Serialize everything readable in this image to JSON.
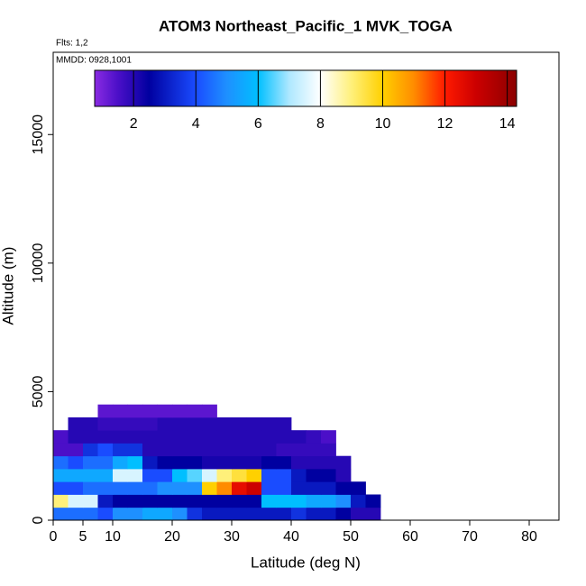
{
  "chart_data": {
    "type": "heatmap",
    "title": "ATOM3 Northeast_Pacific_1 MVK_TOGA",
    "annotations": [
      "Flts: 1,2",
      "MMDD: 0928,1001"
    ],
    "x_label": "Latitude (deg N)",
    "y_label": "Altitude (m)",
    "xlim": [
      0,
      85
    ],
    "xticks": [
      0,
      5,
      10,
      20,
      30,
      40,
      50,
      60,
      70,
      80
    ],
    "ylim": [
      0,
      18200
    ],
    "yticks": [
      0,
      5000,
      10000,
      15000
    ],
    "lat_bins": [
      0,
      2.5,
      5,
      7.5,
      10,
      12.5,
      15,
      17.5,
      20,
      22.5,
      25,
      27.5,
      30,
      32.5,
      35,
      37.5,
      40,
      42.5,
      45,
      47.5,
      50,
      52.5,
      55
    ],
    "alt_bins": [
      0,
      500,
      1000,
      1500,
      2000,
      2500,
      3000,
      3500,
      4000,
      4500
    ],
    "values": [
      [
        4.5,
        4.5,
        4.5,
        4,
        5,
        5,
        5.5,
        5.5,
        5,
        3.5,
        3,
        3,
        3,
        3,
        3,
        3,
        3.5,
        3,
        3,
        2.5,
        2,
        2
      ],
      [
        9,
        7.5,
        7.5,
        3,
        2.5,
        2.5,
        2.5,
        2.5,
        2.5,
        2.5,
        2.5,
        2.5,
        2.5,
        2.5,
        6,
        6,
        6,
        5.5,
        5.5,
        5,
        3,
        2.5
      ],
      [
        4,
        4,
        4.5,
        4.5,
        4.5,
        4.5,
        4.5,
        5,
        5,
        5,
        10,
        11,
        12.5,
        13,
        4,
        4,
        3,
        3,
        3,
        2.5,
        2.5,
        null
      ],
      [
        5.5,
        5.5,
        5.5,
        5.5,
        7.5,
        7.5,
        4,
        4,
        6,
        6.5,
        7.5,
        9,
        9.5,
        10,
        4,
        4,
        3,
        2.5,
        2.5,
        2,
        null,
        null
      ],
      [
        4.5,
        4,
        4.5,
        4.5,
        5.5,
        6,
        3,
        2.5,
        2.5,
        2.5,
        2.2,
        2.2,
        2.2,
        2.2,
        2.5,
        2.5,
        2,
        2,
        2,
        2,
        null,
        null
      ],
      [
        1.5,
        1.5,
        3.5,
        4,
        3.5,
        3.5,
        2,
        2,
        2,
        2,
        2,
        2,
        2,
        2,
        2,
        1.8,
        1.8,
        1.8,
        1.8,
        null,
        null,
        null
      ],
      [
        1.5,
        2,
        2,
        2,
        2,
        2,
        2,
        2,
        2,
        2,
        2,
        2,
        2,
        2,
        2,
        2,
        2,
        1.8,
        1.5,
        null,
        null,
        null
      ],
      [
        null,
        2,
        2,
        1.8,
        1.8,
        1.8,
        1.8,
        2,
        2,
        2,
        2,
        2,
        2,
        2,
        2,
        2,
        null,
        null,
        null,
        null,
        null,
        null
      ],
      [
        null,
        null,
        null,
        1.3,
        1.3,
        1.3,
        1.3,
        1.3,
        1.3,
        1.3,
        1.3,
        null,
        null,
        null,
        null,
        null,
        null,
        null,
        null,
        null,
        null,
        null
      ]
    ],
    "clim": [
      0.75,
      14.3
    ],
    "cticks": [
      2,
      4,
      6,
      8,
      10,
      12,
      14
    ],
    "colorscale": [
      [
        0.75,
        "#8a2be2"
      ],
      [
        1.5,
        "#4b0fc8"
      ],
      [
        2.5,
        "#0000a0"
      ],
      [
        4,
        "#1a4cff"
      ],
      [
        5,
        "#1e90ff"
      ],
      [
        6,
        "#00bfff"
      ],
      [
        7,
        "#aee8ff"
      ],
      [
        8,
        "#ffffff"
      ],
      [
        9,
        "#fff07a"
      ],
      [
        10,
        "#ffd000"
      ],
      [
        11,
        "#ff8c00"
      ],
      [
        12,
        "#ff1a00"
      ],
      [
        13,
        "#cc0000"
      ],
      [
        14.3,
        "#8b0000"
      ]
    ]
  }
}
